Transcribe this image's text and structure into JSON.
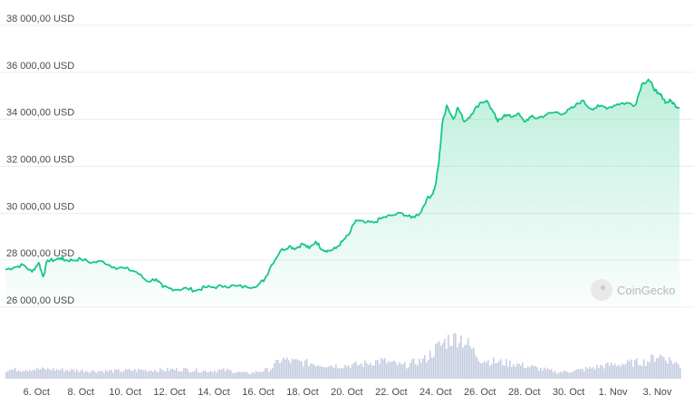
{
  "chart_data": {
    "type": "area",
    "currency": "USD",
    "y_ticks": [
      "26 000,00 USD",
      "28 000,00 USD",
      "30 000,00 USD",
      "32 000,00 USD",
      "34 000,00 USD",
      "36 000,00 USD",
      "38 000,00 USD"
    ],
    "y_tick_values": [
      26000,
      28000,
      30000,
      32000,
      34000,
      36000,
      38000
    ],
    "ylim": [
      26000,
      38000
    ],
    "x_ticks": [
      "6. Oct",
      "8. Oct",
      "10. Oct",
      "12. Oct",
      "14. Oct",
      "16. Oct",
      "18. Oct",
      "20. Oct",
      "22. Oct",
      "24. Oct",
      "26. Oct",
      "28. Oct",
      "30. Oct",
      "1. Nov",
      "3. Nov"
    ],
    "x_tick_days": [
      6,
      8,
      10,
      12,
      14,
      16,
      18,
      20,
      22,
      24,
      26,
      28,
      30,
      32,
      34
    ],
    "xlim": [
      4.6,
      35.0
    ],
    "x_unit": "day (October; 32 = 1. Nov)",
    "series": [
      {
        "x": [
          4.6,
          5.0,
          5.4,
          5.8,
          6.1,
          6.3,
          6.5,
          6.8,
          7.1,
          7.3,
          7.6,
          8.0,
          8.5,
          9.0,
          9.5,
          10.0,
          10.5,
          11.0,
          11.4,
          11.7,
          12.0,
          12.4,
          12.8,
          13.2,
          13.6,
          14.0,
          14.5,
          15.0,
          15.5,
          16.0,
          16.3,
          16.6,
          17.0,
          17.4,
          17.7,
          18.0,
          18.3,
          18.6,
          18.9,
          19.2,
          19.5,
          19.8,
          20.1,
          20.4,
          20.8,
          21.2,
          21.6,
          22.0,
          22.5,
          22.9,
          23.3,
          23.6,
          23.85,
          24.0,
          24.15,
          24.3,
          24.5,
          24.8,
          25.0,
          25.3,
          25.6,
          26.0,
          26.3,
          26.6,
          26.8,
          27.1,
          27.4,
          27.7,
          28.0,
          28.3,
          28.6,
          29.0,
          29.4,
          29.8,
          30.2,
          30.6,
          31.0,
          31.4,
          31.8,
          32.2,
          32.6,
          33.0,
          33.3,
          33.6,
          33.8,
          34.0,
          34.2,
          34.4,
          34.6,
          34.8,
          35.0
        ],
        "y": [
          27600,
          27700,
          27800,
          27500,
          27900,
          27300,
          28000,
          28000,
          28100,
          28000,
          28000,
          28050,
          27900,
          27950,
          27700,
          27650,
          27500,
          27100,
          27200,
          26850,
          26800,
          26750,
          26800,
          26700,
          26850,
          26850,
          26900,
          26900,
          26850,
          26950,
          27200,
          27800,
          28400,
          28600,
          28500,
          28700,
          28500,
          28800,
          28450,
          28400,
          28500,
          28800,
          29100,
          29700,
          29600,
          29600,
          29800,
          29900,
          30000,
          29800,
          30000,
          30600,
          30800,
          31200,
          32200,
          33800,
          34600,
          34000,
          34500,
          33900,
          34200,
          34700,
          34800,
          34300,
          33900,
          34200,
          34100,
          34250,
          33900,
          34100,
          34050,
          34200,
          34300,
          34250,
          34500,
          34800,
          34450,
          34550,
          34500,
          34650,
          34700,
          34600,
          35500,
          35700,
          35400,
          35100,
          35000,
          34700,
          34800,
          34600,
          34500
        ],
        "color": "#16c784"
      }
    ],
    "volume": {
      "x": [
        4.6,
        5.5,
        6.5,
        7.5,
        8.5,
        9.5,
        10.5,
        11.5,
        12.5,
        13.5,
        14.5,
        15.5,
        16.5,
        17.0,
        17.5,
        18.5,
        19.5,
        20.5,
        21.5,
        22.5,
        23.5,
        24.0,
        24.5,
        25.0,
        25.5,
        26.0,
        26.5,
        27.5,
        28.5,
        29.5,
        30.5,
        31.5,
        32.5,
        33.5,
        34.0,
        34.5,
        35.0
      ],
      "level": [
        0.2,
        0.22,
        0.22,
        0.2,
        0.18,
        0.18,
        0.2,
        0.2,
        0.22,
        0.18,
        0.2,
        0.12,
        0.22,
        0.45,
        0.4,
        0.35,
        0.3,
        0.32,
        0.42,
        0.3,
        0.45,
        0.7,
        0.9,
        1.0,
        0.75,
        0.45,
        0.4,
        0.35,
        0.25,
        0.15,
        0.2,
        0.3,
        0.35,
        0.4,
        0.55,
        0.45,
        0.3
      ],
      "color": "#c5cde0"
    }
  },
  "watermark": {
    "text": "CoinGecko"
  }
}
